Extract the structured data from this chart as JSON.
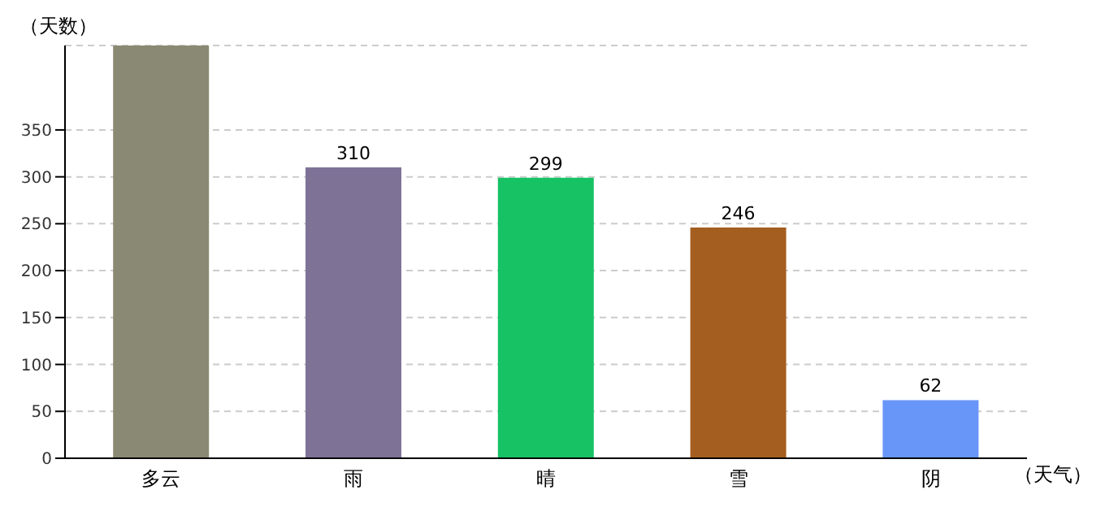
{
  "chart_data": {
    "type": "bar",
    "xlabel": "（天气）",
    "ylabel": "（天数）",
    "categories": [
      "多云",
      "雨",
      "晴",
      "雪",
      "阴"
    ],
    "values": [
      440,
      310,
      299,
      246,
      62
    ],
    "colors": [
      "#8a8a74",
      "#7e7397",
      "#17c264",
      "#a45e20",
      "#6895f8"
    ],
    "value_labels": [
      null,
      "310",
      "299",
      "246",
      "62"
    ],
    "ylim": [
      0,
      440
    ],
    "yticks": [
      0,
      50,
      100,
      150,
      200,
      250,
      300,
      350
    ],
    "grid": "y"
  }
}
